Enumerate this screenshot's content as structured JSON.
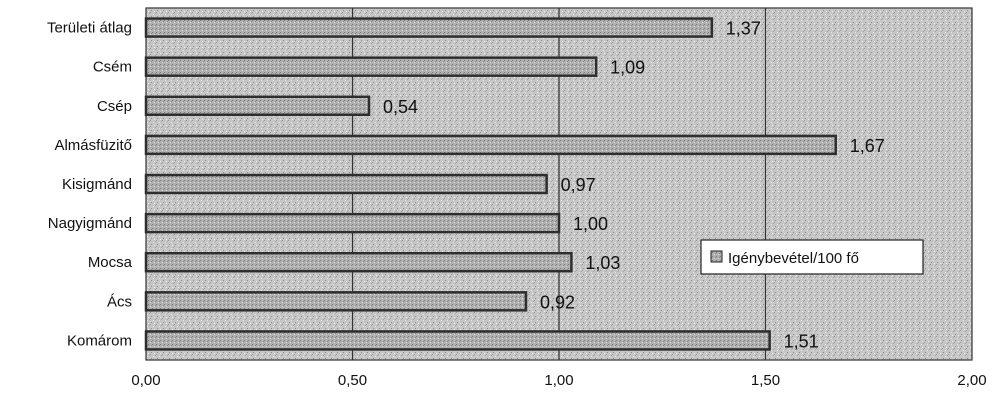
{
  "chart_data": {
    "type": "bar",
    "orientation": "horizontal",
    "categories": [
      "Területi átlag",
      "Csém",
      "Csép",
      "Almásfüzitő",
      "Kisigmánd",
      "Nagyigmánd",
      "Mocsa",
      "Ács",
      "Komárom"
    ],
    "series": [
      {
        "name": "Igénybevétel/100 fő",
        "values": [
          1.37,
          1.09,
          0.54,
          1.67,
          0.97,
          1.0,
          1.03,
          0.92,
          1.51
        ]
      }
    ],
    "value_labels": [
      "1,37",
      "1,09",
      "0,54",
      "1,67",
      "0,97",
      "1,00",
      "1,03",
      "0,92",
      "1,51"
    ],
    "xlim": [
      0,
      2
    ],
    "xticks": [
      0,
      0.5,
      1.0,
      1.5,
      2.0
    ],
    "xtick_labels": [
      "0,00",
      "0,50",
      "1,00",
      "1,50",
      "2,00"
    ],
    "grid": true,
    "legend_position": "right",
    "colors": {
      "bar_fill": "#a8a8a8",
      "bar_edge": "#2e2e2e",
      "plot_bg": "#c9c9c9",
      "grid": "#333333"
    }
  }
}
